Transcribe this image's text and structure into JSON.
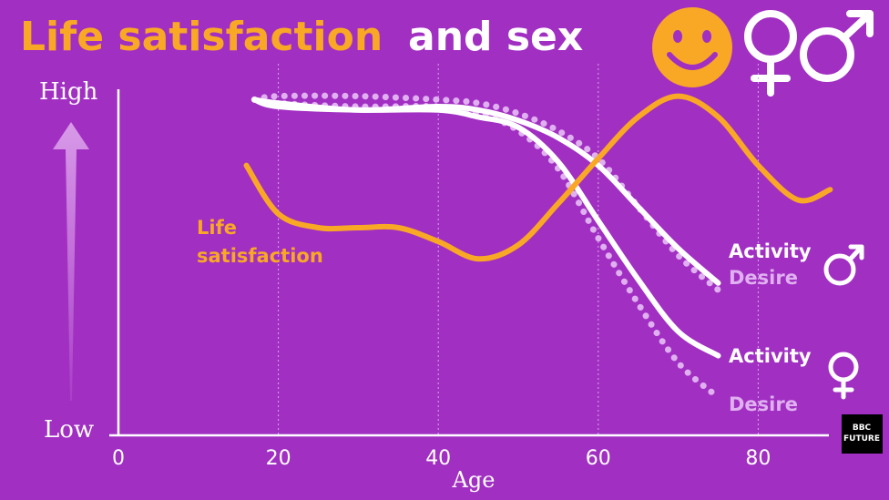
{
  "title": {
    "part1": "Life satisfaction",
    "part2": "and sex"
  },
  "yaxis": {
    "high": "High",
    "low": "Low"
  },
  "xaxis": {
    "label": "Age",
    "ticks": [
      "0",
      "20",
      "40",
      "60",
      "80"
    ]
  },
  "labels": {
    "life_satisfaction_line1": "Life",
    "life_satisfaction_line2": "satisfaction",
    "male_activity": "Activity",
    "male_desire": "Desire",
    "female_activity": "Activity",
    "female_desire": "Desire"
  },
  "logo": {
    "line1": "BBC",
    "line2": "FUTURE"
  },
  "colors": {
    "background": "#a12fc2",
    "life_satisfaction": "#f9a825",
    "activity": "#ffffff",
    "desire": "#e0b0f0",
    "arrow": "#d89ae8"
  },
  "icons": [
    "smiley-face-icon",
    "female-symbol-icon",
    "male-symbol-icon"
  ],
  "chart_data": {
    "type": "line",
    "xlabel": "Age",
    "ylabel": "",
    "xlim": [
      0,
      90
    ],
    "ylim": [
      0,
      1
    ],
    "y_tick_labels": [
      "Low",
      "High"
    ],
    "x_ticks": [
      0,
      20,
      40,
      60,
      80
    ],
    "grid": "dotted vertical at 20, 40, 60, 80",
    "series": [
      {
        "name": "Life satisfaction",
        "style": "solid",
        "color": "#f9a825",
        "x": [
          16,
          20,
          25,
          30,
          35,
          40,
          45,
          50,
          55,
          60,
          65,
          70,
          75,
          80,
          85,
          89
        ],
        "y": [
          0.78,
          0.64,
          0.6,
          0.6,
          0.6,
          0.56,
          0.51,
          0.55,
          0.67,
          0.8,
          0.92,
          0.98,
          0.92,
          0.78,
          0.68,
          0.71
        ]
      },
      {
        "name": "Activity",
        "group": "male",
        "style": "solid",
        "color": "#ffffff",
        "x": [
          17,
          20,
          30,
          40,
          45,
          50,
          55,
          60,
          65,
          70,
          75
        ],
        "y": [
          0.97,
          0.96,
          0.94,
          0.95,
          0.94,
          0.91,
          0.86,
          0.78,
          0.66,
          0.54,
          0.44
        ]
      },
      {
        "name": "Desire",
        "group": "male",
        "style": "dotted",
        "color": "#e0b0f0",
        "x": [
          17,
          20,
          30,
          40,
          45,
          50,
          55,
          60,
          65,
          70,
          75
        ],
        "y": [
          0.97,
          0.98,
          0.98,
          0.97,
          0.96,
          0.93,
          0.88,
          0.8,
          0.66,
          0.52,
          0.42
        ]
      },
      {
        "name": "Activity",
        "group": "female",
        "style": "solid",
        "color": "#ffffff",
        "x": [
          17,
          20,
          30,
          40,
          45,
          50,
          55,
          60,
          65,
          70,
          75
        ],
        "y": [
          0.97,
          0.95,
          0.94,
          0.94,
          0.92,
          0.89,
          0.79,
          0.62,
          0.45,
          0.3,
          0.23
        ]
      },
      {
        "name": "Desire",
        "group": "female",
        "style": "dotted",
        "color": "#e0b0f0",
        "x": [
          17,
          20,
          30,
          40,
          45,
          50,
          55,
          60,
          65,
          70,
          75
        ],
        "y": [
          0.97,
          0.96,
          0.95,
          0.95,
          0.93,
          0.88,
          0.77,
          0.57,
          0.38,
          0.21,
          0.11
        ]
      }
    ]
  }
}
